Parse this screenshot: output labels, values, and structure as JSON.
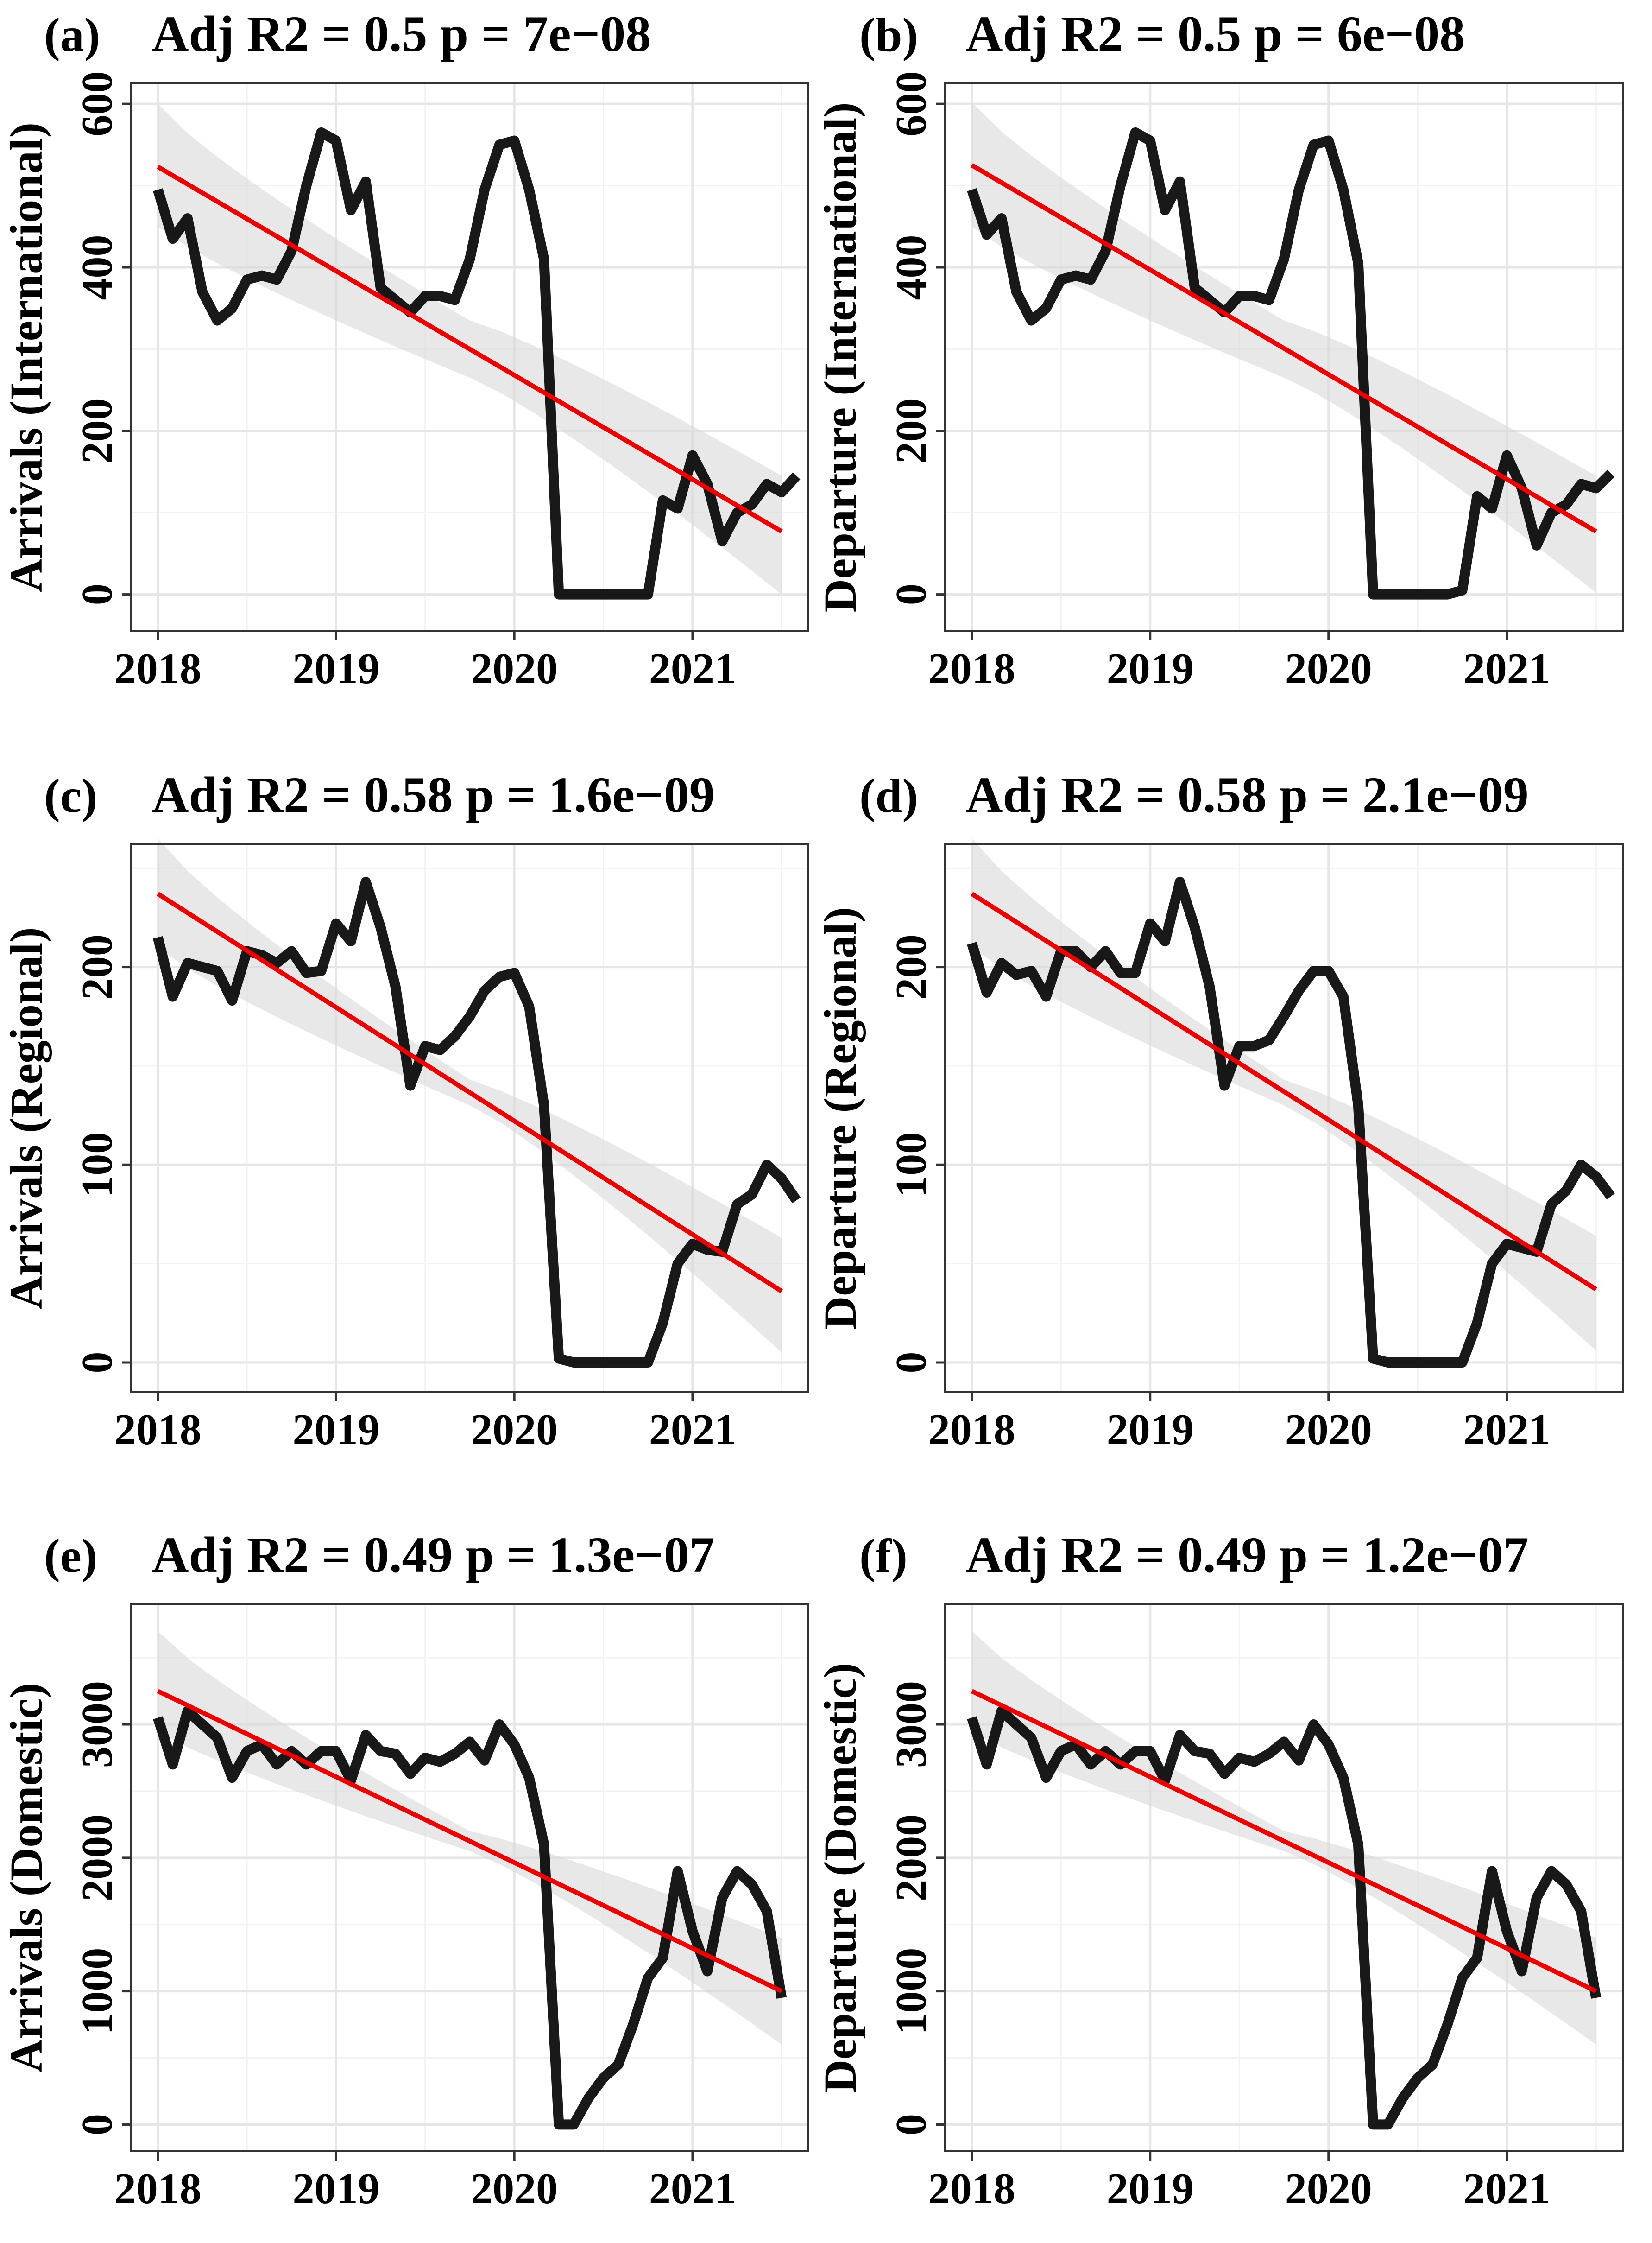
{
  "chart_data": [
    {
      "panel": "(a)",
      "type": "line",
      "title": "Adj R2 =  0.5  p = 7e−08",
      "ylabel": "Arrivals (International)",
      "xlabel": "",
      "xlim": [
        2017.85,
        2021.65
      ],
      "ylim": [
        -45,
        625
      ],
      "xticks": [
        2018,
        2019,
        2020,
        2021
      ],
      "yticks": [
        0,
        200,
        400,
        600
      ],
      "minor_xticks": [
        2018.5,
        2019.5,
        2020.5,
        2021.5
      ],
      "minor_yticks": [
        100,
        300,
        500
      ],
      "start": 2018.0,
      "step": 0.08333,
      "values": [
        495,
        435,
        460,
        370,
        335,
        350,
        385,
        390,
        385,
        420,
        500,
        565,
        555,
        470,
        505,
        375,
        360,
        345,
        365,
        365,
        360,
        410,
        495,
        550,
        555,
        495,
        410,
        0,
        0,
        0,
        0,
        0,
        0,
        0,
        115,
        105,
        170,
        135,
        65,
        100,
        110,
        135,
        125,
        145
      ],
      "trend": {
        "x0": 2018.0,
        "y0": 523,
        "x1": 2021.5,
        "y1": 77
      },
      "ci": {
        "upper0": 600,
        "lower0": 450,
        "mid": 2019.75,
        "upper_mid": 335,
        "lower_mid": 265,
        "upper1": 145,
        "lower1": 0
      },
      "series_color": "#000000",
      "trend_color": "#ee0000",
      "ci_color": "#d9d9d9"
    },
    {
      "panel": "(b)",
      "type": "line",
      "title": "Adj R2 =  0.5  p = 6e−08",
      "ylabel": "Departure (International)",
      "xlabel": "",
      "xlim": [
        2017.85,
        2021.65
      ],
      "ylim": [
        -45,
        625
      ],
      "xticks": [
        2018,
        2019,
        2020,
        2021
      ],
      "yticks": [
        0,
        200,
        400,
        600
      ],
      "minor_xticks": [
        2018.5,
        2019.5,
        2020.5,
        2021.5
      ],
      "minor_yticks": [
        100,
        300,
        500
      ],
      "start": 2018.0,
      "step": 0.08333,
      "values": [
        495,
        440,
        460,
        370,
        335,
        350,
        385,
        390,
        385,
        420,
        500,
        565,
        555,
        470,
        505,
        375,
        360,
        345,
        365,
        365,
        360,
        410,
        495,
        550,
        555,
        495,
        405,
        0,
        0,
        0,
        0,
        0,
        0,
        5,
        120,
        105,
        170,
        130,
        60,
        100,
        110,
        135,
        130,
        148
      ],
      "trend": {
        "x0": 2018.0,
        "y0": 525,
        "x1": 2021.5,
        "y1": 77
      },
      "ci": {
        "upper0": 602,
        "lower0": 450,
        "mid": 2019.75,
        "upper_mid": 335,
        "lower_mid": 265,
        "upper1": 145,
        "lower1": 2
      },
      "series_color": "#000000",
      "trend_color": "#ee0000",
      "ci_color": "#d9d9d9"
    },
    {
      "panel": "(c)",
      "type": "line",
      "title": "Adj R2 =  0.58  p = 1.6e−09",
      "ylabel": "Arrivals (Regional)",
      "xlabel": "",
      "xlim": [
        2017.85,
        2021.65
      ],
      "ylim": [
        -15,
        262
      ],
      "xticks": [
        2018,
        2019,
        2020,
        2021
      ],
      "yticks": [
        0,
        100,
        200
      ],
      "minor_xticks": [
        2018.5,
        2019.5,
        2020.5,
        2021.5
      ],
      "minor_yticks": [
        50,
        150,
        250
      ],
      "start": 2018.0,
      "step": 0.08333,
      "values": [
        215,
        185,
        202,
        200,
        198,
        183,
        208,
        206,
        202,
        208,
        197,
        198,
        222,
        213,
        243,
        220,
        190,
        140,
        160,
        158,
        165,
        175,
        188,
        195,
        197,
        180,
        130,
        2,
        0,
        0,
        0,
        0,
        0,
        0,
        20,
        50,
        60,
        57,
        56,
        80,
        85,
        100,
        93,
        82
      ],
      "trend": {
        "x0": 2018.0,
        "y0": 237,
        "x1": 2021.5,
        "y1": 36
      },
      "ci": {
        "upper0": 265,
        "lower0": 210,
        "mid": 2019.75,
        "upper_mid": 143,
        "lower_mid": 130,
        "upper1": 63,
        "lower1": 5
      },
      "series_color": "#000000",
      "trend_color": "#ee0000",
      "ci_color": "#d9d9d9"
    },
    {
      "panel": "(d)",
      "type": "line",
      "title": "Adj R2 =  0.58  p = 2.1e−09",
      "ylabel": "Departure (Regional)",
      "xlabel": "",
      "xlim": [
        2017.85,
        2021.65
      ],
      "ylim": [
        -15,
        262
      ],
      "xticks": [
        2018,
        2019,
        2020,
        2021
      ],
      "yticks": [
        0,
        100,
        200
      ],
      "minor_xticks": [
        2018.5,
        2019.5,
        2020.5,
        2021.5
      ],
      "minor_yticks": [
        50,
        150,
        250
      ],
      "start": 2018.0,
      "step": 0.08333,
      "values": [
        212,
        187,
        202,
        196,
        198,
        185,
        208,
        208,
        200,
        208,
        197,
        197,
        222,
        213,
        243,
        220,
        190,
        140,
        160,
        160,
        163,
        175,
        188,
        198,
        198,
        185,
        130,
        2,
        0,
        0,
        0,
        0,
        0,
        0,
        20,
        50,
        60,
        58,
        56,
        80,
        87,
        100,
        94,
        84
      ],
      "trend": {
        "x0": 2018.0,
        "y0": 237,
        "x1": 2021.5,
        "y1": 37
      },
      "ci": {
        "upper0": 265,
        "lower0": 210,
        "mid": 2019.75,
        "upper_mid": 143,
        "lower_mid": 130,
        "upper1": 64,
        "lower1": 6
      },
      "series_color": "#000000",
      "trend_color": "#ee0000",
      "ci_color": "#d9d9d9"
    },
    {
      "panel": "(e)",
      "type": "line",
      "title": "Adj R2 =  0.49  p = 1.3e−07",
      "ylabel": "Arrivals (Domestic)",
      "xlabel": "",
      "xlim": [
        2017.85,
        2021.65
      ],
      "ylim": [
        -200,
        3900
      ],
      "xticks": [
        2018,
        2019,
        2020,
        2021
      ],
      "yticks": [
        0,
        1000,
        2000,
        3000
      ],
      "minor_xticks": [
        2018.5,
        2019.5,
        2020.5,
        2021.5
      ],
      "minor_yticks": [
        500,
        1500,
        2500,
        3500
      ],
      "start": 2018.0,
      "step": 0.08333,
      "values": [
        3050,
        2700,
        3100,
        3000,
        2900,
        2600,
        2800,
        2850,
        2700,
        2800,
        2700,
        2800,
        2800,
        2580,
        2920,
        2800,
        2780,
        2630,
        2750,
        2720,
        2780,
        2870,
        2730,
        3000,
        2850,
        2600,
        2100,
        0,
        0,
        200,
        350,
        450,
        750,
        1100,
        1250,
        1900,
        1450,
        1150,
        1700,
        1900,
        1800,
        1600,
        950
      ],
      "trend": {
        "x0": 2018.0,
        "y0": 3250,
        "x1": 2021.5,
        "y1": 1000
      },
      "ci": {
        "upper0": 3700,
        "lower0": 2950,
        "mid": 2019.75,
        "upper_mid": 2200,
        "lower_mid": 2050,
        "upper1": 1400,
        "lower1": 600
      },
      "series_color": "#000000",
      "trend_color": "#ee0000",
      "ci_color": "#d9d9d9"
    },
    {
      "panel": "(f)",
      "type": "line",
      "title": "Adj R2 =  0.49  p = 1.2e−07",
      "ylabel": "Departure (Domestic)",
      "xlabel": "",
      "xlim": [
        2017.85,
        2021.65
      ],
      "ylim": [
        -200,
        3900
      ],
      "xticks": [
        2018,
        2019,
        2020,
        2021
      ],
      "yticks": [
        0,
        1000,
        2000,
        3000
      ],
      "minor_xticks": [
        2018.5,
        2019.5,
        2020.5,
        2021.5
      ],
      "minor_yticks": [
        500,
        1500,
        2500,
        3500
      ],
      "start": 2018.0,
      "step": 0.08333,
      "values": [
        3050,
        2700,
        3100,
        3000,
        2900,
        2600,
        2800,
        2850,
        2700,
        2800,
        2700,
        2800,
        2800,
        2580,
        2920,
        2800,
        2780,
        2630,
        2750,
        2720,
        2780,
        2870,
        2730,
        3000,
        2850,
        2600,
        2100,
        0,
        0,
        200,
        350,
        450,
        750,
        1100,
        1250,
        1900,
        1450,
        1150,
        1700,
        1900,
        1800,
        1600,
        950
      ],
      "trend": {
        "x0": 2018.0,
        "y0": 3250,
        "x1": 2021.5,
        "y1": 1000
      },
      "ci": {
        "upper0": 3700,
        "lower0": 2950,
        "mid": 2019.75,
        "upper_mid": 2200,
        "lower_mid": 2050,
        "upper1": 1400,
        "lower1": 600
      },
      "series_color": "#000000",
      "trend_color": "#ee0000",
      "ci_color": "#d9d9d9"
    }
  ]
}
